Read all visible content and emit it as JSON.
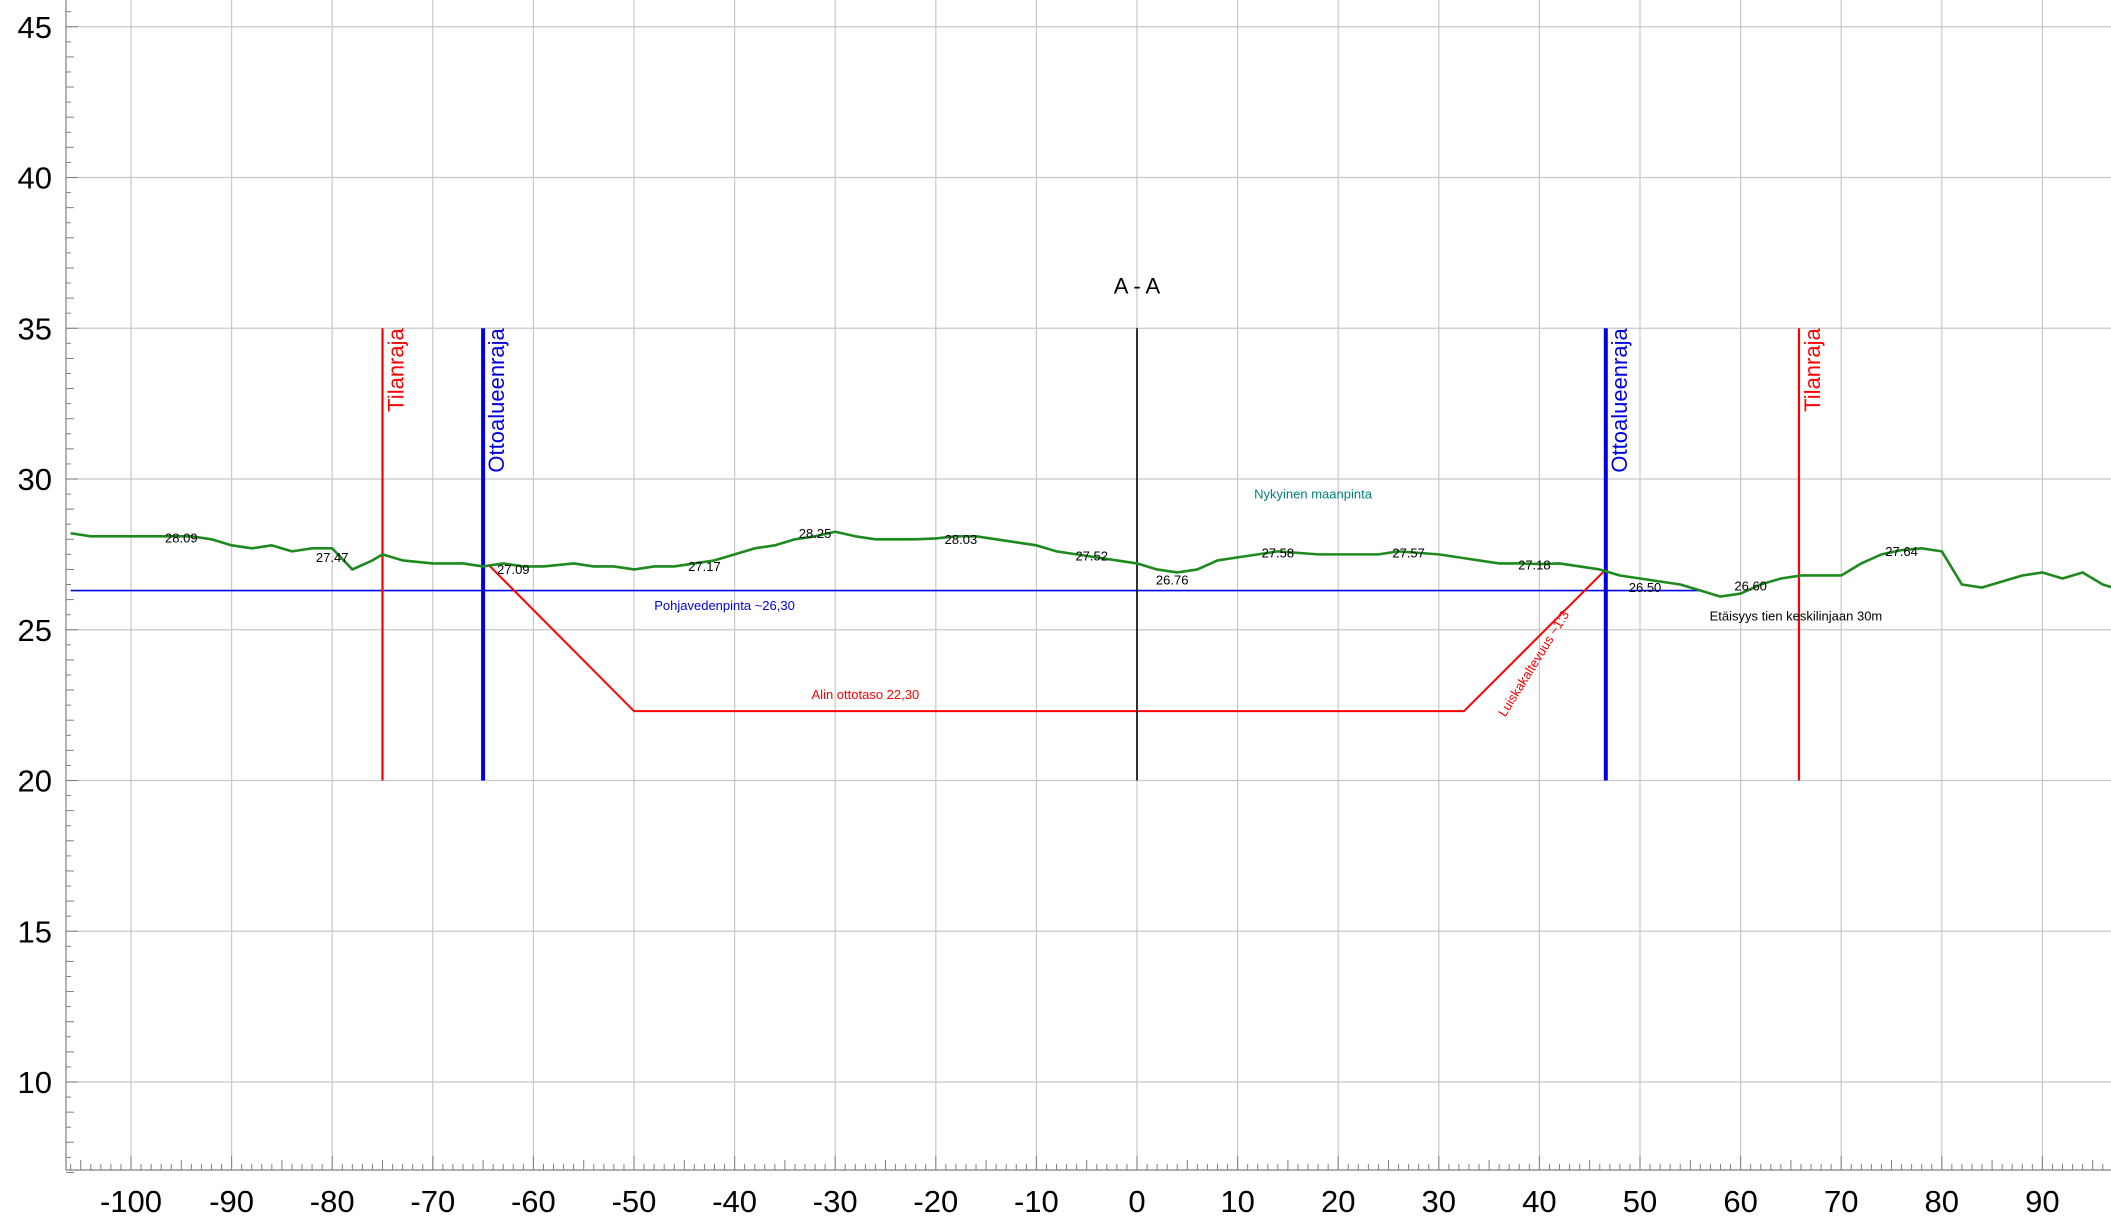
{
  "chart_data": {
    "type": "line",
    "title": "A - A",
    "xlim": [
      -106,
      97
    ],
    "ylim": [
      7,
      46
    ],
    "x_ticks": [
      -100,
      -90,
      -80,
      -70,
      -60,
      -50,
      -40,
      -30,
      -20,
      -10,
      0,
      10,
      20,
      30,
      40,
      50,
      60,
      70,
      80,
      90
    ],
    "y_ticks": [
      10,
      15,
      20,
      25,
      30,
      35,
      40,
      45
    ],
    "grid": true,
    "colors": {
      "ground": "#1e8a1e",
      "water": "#0000e0",
      "boundary_red": "#ff0000",
      "boundary_blue": "#0000e0",
      "center": "#000000",
      "grid": "#c8c8c8",
      "label_teal": "#008080"
    },
    "series": [
      {
        "name": "Nykyinen maanpinta",
        "x": [
          -106,
          -104,
          -102,
          -100,
          -98,
          -96,
          -94,
          -92,
          -90,
          -88,
          -86,
          -84,
          -82,
          -80,
          -78,
          -76,
          -75,
          -73,
          -70,
          -67,
          -65,
          -63,
          -61,
          -59,
          -56,
          -54,
          -52,
          -50,
          -48,
          -46,
          -44,
          -42,
          -40,
          -38,
          -36,
          -34,
          -32,
          -30,
          -28,
          -26,
          -24,
          -22,
          -20,
          -18,
          -16,
          -14,
          -12,
          -10,
          -8,
          -6,
          -4,
          -2,
          0,
          2,
          4,
          6,
          8,
          10,
          12,
          14,
          16,
          18,
          20,
          22,
          24,
          26,
          28,
          30,
          32,
          34,
          36,
          38,
          40,
          42,
          44,
          46,
          48,
          50,
          52,
          54,
          56,
          58,
          60,
          62,
          64,
          66,
          68,
          70,
          72,
          74,
          76,
          78,
          80,
          82,
          84,
          86,
          88,
          90,
          92,
          94,
          96,
          97
        ],
        "y": [
          28.2,
          28.1,
          28.1,
          28.1,
          28.1,
          28.1,
          28.1,
          28.0,
          27.8,
          27.7,
          27.8,
          27.6,
          27.7,
          27.7,
          27.0,
          27.3,
          27.5,
          27.3,
          27.2,
          27.2,
          27.1,
          27.2,
          27.1,
          27.1,
          27.2,
          27.1,
          27.1,
          27.0,
          27.1,
          27.1,
          27.2,
          27.3,
          27.5,
          27.7,
          27.8,
          28.0,
          28.1,
          28.25,
          28.1,
          28.0,
          28.0,
          28.0,
          28.03,
          28.1,
          28.1,
          28.0,
          27.9,
          27.8,
          27.6,
          27.5,
          27.4,
          27.3,
          27.2,
          27.0,
          26.9,
          27.0,
          27.3,
          27.4,
          27.5,
          27.6,
          27.55,
          27.5,
          27.5,
          27.5,
          27.5,
          27.6,
          27.55,
          27.5,
          27.4,
          27.3,
          27.2,
          27.2,
          27.18,
          27.2,
          27.1,
          27.0,
          26.8,
          26.7,
          26.6,
          26.5,
          26.3,
          26.1,
          26.2,
          26.5,
          26.7,
          26.8,
          26.8,
          26.8,
          27.2,
          27.5,
          27.64,
          27.7,
          27.6,
          26.5,
          26.4,
          26.6,
          26.8,
          26.9,
          26.7,
          26.9,
          26.5,
          26.4
        ]
      }
    ],
    "spot_labels": [
      {
        "x": -95,
        "y": 27.9,
        "text": "28.09"
      },
      {
        "x": -80,
        "y": 27.25,
        "text": "27.47"
      },
      {
        "x": -62,
        "y": 26.85,
        "text": "27.09"
      },
      {
        "x": -43,
        "y": 26.95,
        "text": "27.17"
      },
      {
        "x": -32,
        "y": 28.05,
        "text": "28.25"
      },
      {
        "x": -17.5,
        "y": 27.85,
        "text": "28.03"
      },
      {
        "x": -4.5,
        "y": 27.3,
        "text": "27.52"
      },
      {
        "x": 3.5,
        "y": 26.5,
        "text": "26.76"
      },
      {
        "x": 14,
        "y": 27.4,
        "text": "27.58"
      },
      {
        "x": 27,
        "y": 27.4,
        "text": "27.57"
      },
      {
        "x": 39.5,
        "y": 27.0,
        "text": "27.18"
      },
      {
        "x": 50.5,
        "y": 26.25,
        "text": "26.50"
      },
      {
        "x": 61,
        "y": 26.3,
        "text": "26.60"
      },
      {
        "x": 76,
        "y": 27.45,
        "text": "27.64"
      }
    ],
    "annotations": {
      "ground_label": {
        "x": 17.5,
        "y": 29.35,
        "text": "Nykyinen maanpinta"
      },
      "water_label": {
        "x": -41,
        "y": 25.65,
        "text": "Pohjavedenpinta ~26,30"
      },
      "bottom_label": {
        "x": -27,
        "y": 22.7,
        "text": "Alin ottotaso 22,30"
      },
      "slope_label": {
        "x": 39.8,
        "y": 23.8,
        "text": "Luiskakaltevuus ~1:3"
      },
      "distance_label": {
        "x": 65.5,
        "y": 25.3,
        "text": "Etäisyys tien keskilinjaan 30m"
      }
    },
    "water_level": {
      "y": 26.3,
      "x_range": [
        -106,
        56
      ]
    },
    "excavation": {
      "points": [
        [
          -64.3,
          27.1
        ],
        [
          -50,
          22.3
        ],
        [
          32.5,
          22.3
        ],
        [
          46.6,
          27.0
        ]
      ]
    },
    "verticals": [
      {
        "x": -75,
        "y_range": [
          20,
          35
        ],
        "label": "Tilanraja",
        "kind": "red"
      },
      {
        "x": -65,
        "y_range": [
          20,
          35
        ],
        "label": "Ottoalueenraja",
        "kind": "blue"
      },
      {
        "x": 0,
        "y_range": [
          20,
          35
        ],
        "label": "A - A",
        "kind": "center"
      },
      {
        "x": 46.6,
        "y_range": [
          20,
          35
        ],
        "label": "Ottoalueenraja",
        "kind": "blue"
      },
      {
        "x": 65.8,
        "y_range": [
          20,
          35
        ],
        "label": "Tilanraja",
        "kind": "red"
      }
    ]
  }
}
